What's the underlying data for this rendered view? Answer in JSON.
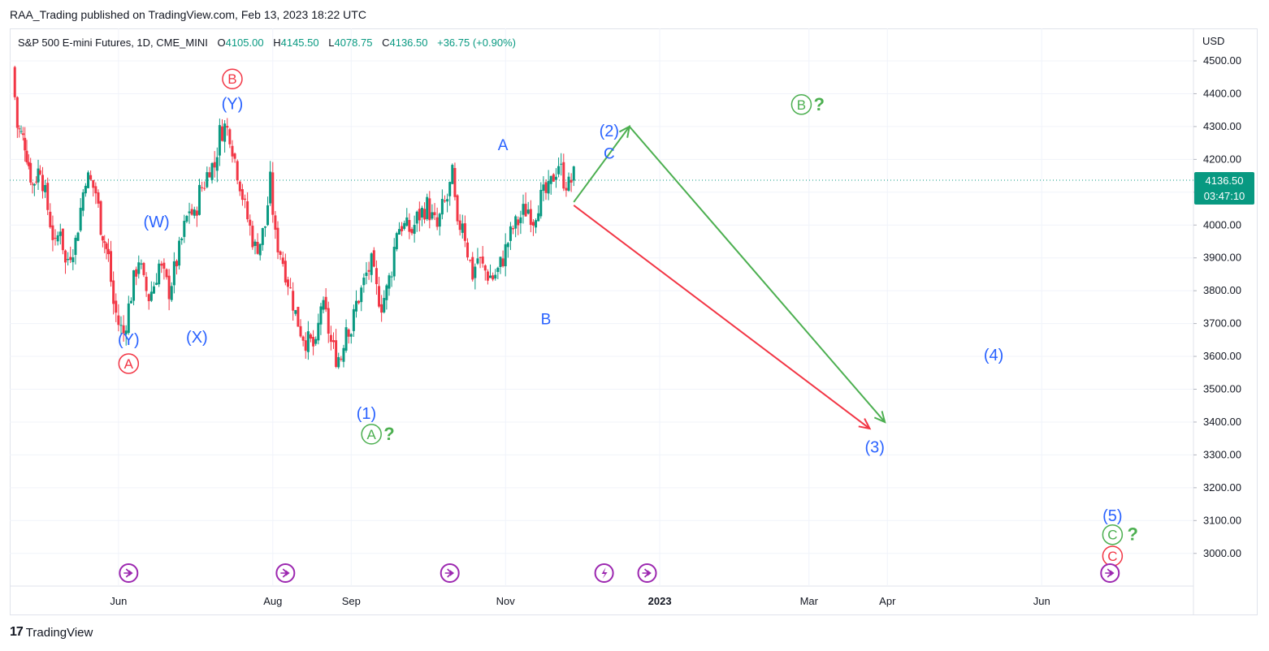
{
  "header": {
    "published": "RAA_Trading published on TradingView.com, Feb 13, 2023 18:22 UTC"
  },
  "legend": {
    "symbol": "S&P 500 E-mini Futures, 1D, CME_MINI",
    "open_key": "O",
    "open": "4105.00",
    "high_key": "H",
    "high": "4145.50",
    "low_key": "L",
    "low": "4078.75",
    "close_key": "C",
    "close": "4136.50",
    "change": "+36.75 (+0.90%)"
  },
  "price_axis": {
    "currency": "USD",
    "ticks": [
      "4500.00",
      "4400.00",
      "4300.00",
      "4200.00",
      "4100.00",
      "4000.00",
      "3900.00",
      "3800.00",
      "3700.00",
      "3600.00",
      "3500.00",
      "3400.00",
      "3300.00",
      "3200.00",
      "3100.00",
      "3000.00"
    ],
    "last_price": "4136.50",
    "countdown": "03:47:10"
  },
  "footer": {
    "brand": "TradingView",
    "logo": "17"
  },
  "colors": {
    "up": "#089981",
    "down": "#f23645",
    "blue": "#2962ff",
    "green": "#4caf50",
    "red": "#f23645",
    "purple": "#9c27b0"
  },
  "chart_data": {
    "type": "candlestick",
    "title": "S&P 500 E-mini Futures, 1D, CME_MINI",
    "ylabel": "USD",
    "ylim": [
      2900,
      4550
    ],
    "x_tick_labels": [
      {
        "label": "Jun",
        "day": 137
      },
      {
        "label": "Aug",
        "day": 198
      },
      {
        "label": "Sep",
        "day": 229
      },
      {
        "label": "Nov",
        "day": 290
      },
      {
        "label": "2023",
        "day": 351
      },
      {
        "label": "Mar",
        "day": 410
      },
      {
        "label": "Apr",
        "day": 441
      },
      {
        "label": "Jun",
        "day": 502
      }
    ],
    "x_domain_days": [
      94,
      562
    ],
    "price_path": [
      [
        95,
        4480
      ],
      [
        97,
        4300
      ],
      [
        100,
        4250
      ],
      [
        103,
        4120
      ],
      [
        106,
        4180
      ],
      [
        108,
        4090
      ],
      [
        110,
        4010
      ],
      [
        112,
        3930
      ],
      [
        114,
        4000
      ],
      [
        116,
        3880
      ],
      [
        118,
        3920
      ],
      [
        120,
        3950
      ],
      [
        122,
        4050
      ],
      [
        124,
        4150
      ],
      [
        126,
        4130
      ],
      [
        128,
        4100
      ],
      [
        130,
        4000
      ],
      [
        133,
        3900
      ],
      [
        135,
        3760
      ],
      [
        137,
        3700
      ],
      [
        139,
        3670
      ],
      [
        141,
        3750
      ],
      [
        143,
        3830
      ],
      [
        145,
        3900
      ],
      [
        147,
        3820
      ],
      [
        149,
        3780
      ],
      [
        151,
        3820
      ],
      [
        153,
        3880
      ],
      [
        155,
        3840
      ],
      [
        157,
        3800
      ],
      [
        159,
        3860
      ],
      [
        161,
        3920
      ],
      [
        163,
        3990
      ],
      [
        165,
        4050
      ],
      [
        167,
        4020
      ],
      [
        169,
        4100
      ],
      [
        171,
        4130
      ],
      [
        173,
        4180
      ],
      [
        175,
        4180
      ],
      [
        177,
        4280
      ],
      [
        179,
        4300
      ],
      [
        181,
        4280
      ],
      [
        183,
        4200
      ],
      [
        185,
        4130
      ],
      [
        187,
        4050
      ],
      [
        189,
        3990
      ],
      [
        191,
        3930
      ],
      [
        193,
        3950
      ],
      [
        195,
        4000
      ],
      [
        197,
        4130
      ],
      [
        199,
        3960
      ],
      [
        201,
        3920
      ],
      [
        203,
        3860
      ],
      [
        205,
        3800
      ],
      [
        207,
        3730
      ],
      [
        209,
        3680
      ],
      [
        211,
        3650
      ],
      [
        213,
        3640
      ],
      [
        215,
        3620
      ],
      [
        217,
        3760
      ],
      [
        219,
        3720
      ],
      [
        221,
        3640
      ],
      [
        223,
        3600
      ],
      [
        225,
        3600
      ],
      [
        227,
        3700
      ],
      [
        229,
        3680
      ],
      [
        231,
        3760
      ],
      [
        233,
        3800
      ],
      [
        235,
        3850
      ],
      [
        237,
        3880
      ],
      [
        239,
        3800
      ],
      [
        241,
        3760
      ],
      [
        243,
        3800
      ],
      [
        245,
        3870
      ],
      [
        247,
        3990
      ],
      [
        249,
        4000
      ],
      [
        251,
        3990
      ],
      [
        253,
        3980
      ],
      [
        255,
        4020
      ],
      [
        257,
        4040
      ],
      [
        259,
        4060
      ],
      [
        261,
        4020
      ],
      [
        263,
        3990
      ],
      [
        265,
        4050
      ],
      [
        267,
        4080
      ],
      [
        269,
        4150
      ],
      [
        271,
        3980
      ],
      [
        273,
        4020
      ],
      [
        275,
        3920
      ],
      [
        277,
        3850
      ],
      [
        279,
        3900
      ],
      [
        281,
        3870
      ],
      [
        283,
        3850
      ],
      [
        285,
        3840
      ],
      [
        287,
        3860
      ],
      [
        289,
        3900
      ],
      [
        291,
        3950
      ],
      [
        293,
        3990
      ],
      [
        295,
        4010
      ],
      [
        297,
        4040
      ],
      [
        299,
        4050
      ],
      [
        301,
        4020
      ],
      [
        303,
        4070
      ],
      [
        305,
        4090
      ],
      [
        307,
        4100
      ],
      [
        309,
        4150
      ],
      [
        311,
        4190
      ],
      [
        313,
        4140
      ],
      [
        315,
        4120
      ],
      [
        317,
        4150
      ]
    ],
    "annotations": [
      {
        "id": "A-red",
        "text": "A",
        "day": 141,
        "price": 3578,
        "style": "circled",
        "color": "#f23645"
      },
      {
        "id": "Y1",
        "text": "(Y)",
        "day": 141,
        "price": 3652,
        "style": "plain",
        "color": "#2962ff"
      },
      {
        "id": "W",
        "text": "(W)",
        "day": 152,
        "price": 4010,
        "style": "plain",
        "color": "#2962ff"
      },
      {
        "id": "X",
        "text": "(X)",
        "day": 168,
        "price": 3660,
        "style": "plain",
        "color": "#2962ff"
      },
      {
        "id": "B-red",
        "text": "B",
        "day": 182,
        "price": 4445,
        "style": "circled",
        "color": "#f23645"
      },
      {
        "id": "Y2",
        "text": "(Y)",
        "day": 182,
        "price": 4370,
        "style": "plain",
        "color": "#2962ff"
      },
      {
        "id": "w1",
        "text": "(1)",
        "day": 235,
        "price": 3427,
        "style": "plain",
        "color": "#2962ff"
      },
      {
        "id": "A-green",
        "text": "A",
        "day": 237,
        "price": 3363,
        "style": "circled",
        "color": "#4caf50"
      },
      {
        "id": "q1",
        "text": "?",
        "day": 244,
        "price": 3363,
        "style": "plain",
        "color": "#4caf50"
      },
      {
        "id": "A-blue",
        "text": "A",
        "day": 289,
        "price": 4245,
        "style": "plain-small",
        "color": "#2962ff"
      },
      {
        "id": "B-blue",
        "text": "B",
        "day": 306,
        "price": 3715,
        "style": "plain-small",
        "color": "#2962ff"
      },
      {
        "id": "w2",
        "text": "(2)",
        "day": 331,
        "price": 4288,
        "style": "plain",
        "color": "#2962ff"
      },
      {
        "id": "C-blue",
        "text": "C",
        "day": 331,
        "price": 4220,
        "style": "plain-small",
        "color": "#2962ff"
      },
      {
        "id": "B-green",
        "text": "B",
        "day": 407,
        "price": 4367,
        "style": "circled",
        "color": "#4caf50"
      },
      {
        "id": "q2",
        "text": "?",
        "day": 414,
        "price": 4367,
        "style": "plain",
        "color": "#4caf50"
      },
      {
        "id": "w3",
        "text": "(3)",
        "day": 436,
        "price": 3325,
        "style": "plain",
        "color": "#2962ff"
      },
      {
        "id": "w4",
        "text": "(4)",
        "day": 483,
        "price": 3605,
        "style": "plain",
        "color": "#2962ff"
      },
      {
        "id": "w5",
        "text": "(5)",
        "day": 530,
        "price": 3115,
        "style": "plain",
        "color": "#2962ff"
      },
      {
        "id": "C-green",
        "text": "C",
        "day": 530,
        "price": 3057,
        "style": "circled",
        "color": "#4caf50"
      },
      {
        "id": "q3",
        "text": "?",
        "day": 538,
        "price": 3057,
        "style": "plain",
        "color": "#4caf50"
      },
      {
        "id": "C-red",
        "text": "C",
        "day": 530,
        "price": 2992,
        "style": "circled",
        "color": "#f23645"
      }
    ],
    "projections": [
      {
        "name": "bearish-path",
        "color": "#f23645",
        "points": [
          [
            317,
            4060
          ],
          [
            434,
            3380
          ]
        ]
      },
      {
        "name": "bullish-path",
        "color": "#4caf50",
        "points": [
          [
            317,
            4070
          ],
          [
            339,
            4300
          ],
          [
            440,
            3400
          ]
        ]
      }
    ],
    "event_markers": [
      {
        "day": 141,
        "kind": "dividend"
      },
      {
        "day": 203,
        "kind": "dividend"
      },
      {
        "day": 268,
        "kind": "dividend"
      },
      {
        "day": 329,
        "kind": "earnings"
      },
      {
        "day": 346,
        "kind": "dividend"
      },
      {
        "day": 529,
        "kind": "dividend"
      }
    ]
  }
}
